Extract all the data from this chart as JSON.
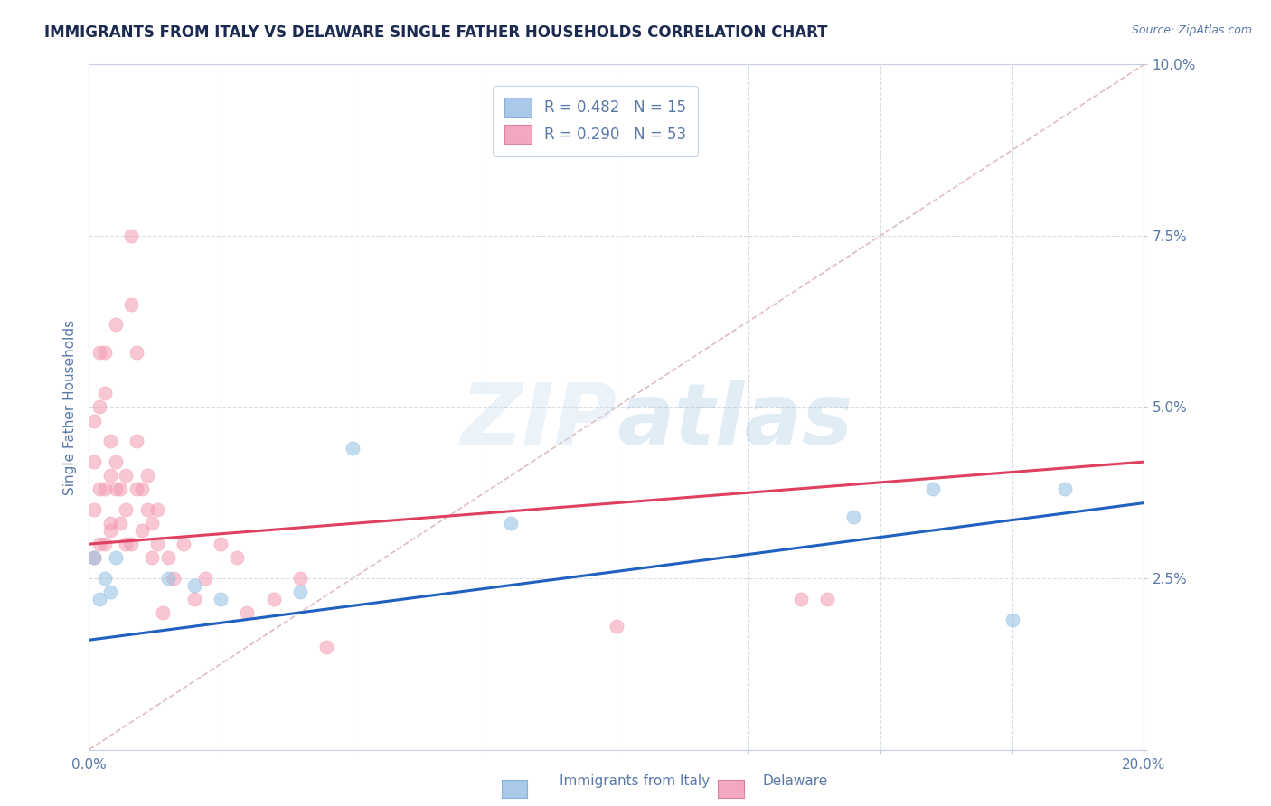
{
  "title": "IMMIGRANTS FROM ITALY VS DELAWARE SINGLE FATHER HOUSEHOLDS CORRELATION CHART",
  "source": "Source: ZipAtlas.com",
  "ylabel": "Single Father Households",
  "xlim": [
    0.0,
    0.2
  ],
  "ylim": [
    0.0,
    0.1
  ],
  "yticks": [
    0.0,
    0.025,
    0.05,
    0.075,
    0.1
  ],
  "ytick_labels": [
    "",
    "2.5%",
    "5.0%",
    "7.5%",
    "10.0%"
  ],
  "xticks": [
    0.0,
    0.025,
    0.05,
    0.075,
    0.1,
    0.125,
    0.15,
    0.175,
    0.2
  ],
  "legend1_label": "R = 0.482   N = 15",
  "legend2_label": "R = 0.290   N = 53",
  "legend1_color": "#aac8e8",
  "legend2_color": "#f4a8c0",
  "watermark": "ZIPatlas",
  "blue_scatter": [
    [
      0.001,
      0.028
    ],
    [
      0.002,
      0.022
    ],
    [
      0.003,
      0.025
    ],
    [
      0.004,
      0.023
    ],
    [
      0.005,
      0.028
    ],
    [
      0.015,
      0.025
    ],
    [
      0.02,
      0.024
    ],
    [
      0.025,
      0.022
    ],
    [
      0.04,
      0.023
    ],
    [
      0.05,
      0.044
    ],
    [
      0.08,
      0.033
    ],
    [
      0.145,
      0.034
    ],
    [
      0.16,
      0.038
    ],
    [
      0.175,
      0.019
    ],
    [
      0.185,
      0.038
    ]
  ],
  "pink_scatter": [
    [
      0.001,
      0.035
    ],
    [
      0.001,
      0.042
    ],
    [
      0.001,
      0.048
    ],
    [
      0.001,
      0.028
    ],
    [
      0.002,
      0.03
    ],
    [
      0.002,
      0.038
    ],
    [
      0.002,
      0.05
    ],
    [
      0.002,
      0.058
    ],
    [
      0.003,
      0.03
    ],
    [
      0.003,
      0.038
    ],
    [
      0.003,
      0.052
    ],
    [
      0.003,
      0.058
    ],
    [
      0.004,
      0.032
    ],
    [
      0.004,
      0.04
    ],
    [
      0.004,
      0.045
    ],
    [
      0.004,
      0.033
    ],
    [
      0.005,
      0.038
    ],
    [
      0.005,
      0.042
    ],
    [
      0.005,
      0.062
    ],
    [
      0.006,
      0.033
    ],
    [
      0.006,
      0.038
    ],
    [
      0.007,
      0.03
    ],
    [
      0.007,
      0.035
    ],
    [
      0.007,
      0.04
    ],
    [
      0.008,
      0.03
    ],
    [
      0.008,
      0.065
    ],
    [
      0.008,
      0.075
    ],
    [
      0.009,
      0.038
    ],
    [
      0.009,
      0.045
    ],
    [
      0.009,
      0.058
    ],
    [
      0.01,
      0.032
    ],
    [
      0.01,
      0.038
    ],
    [
      0.011,
      0.035
    ],
    [
      0.011,
      0.04
    ],
    [
      0.012,
      0.028
    ],
    [
      0.012,
      0.033
    ],
    [
      0.013,
      0.03
    ],
    [
      0.013,
      0.035
    ],
    [
      0.014,
      0.02
    ],
    [
      0.015,
      0.028
    ],
    [
      0.016,
      0.025
    ],
    [
      0.018,
      0.03
    ],
    [
      0.02,
      0.022
    ],
    [
      0.022,
      0.025
    ],
    [
      0.025,
      0.03
    ],
    [
      0.028,
      0.028
    ],
    [
      0.03,
      0.02
    ],
    [
      0.035,
      0.022
    ],
    [
      0.04,
      0.025
    ],
    [
      0.045,
      0.015
    ],
    [
      0.1,
      0.018
    ],
    [
      0.135,
      0.022
    ],
    [
      0.14,
      0.022
    ]
  ],
  "blue_line_x": [
    0.0,
    0.2
  ],
  "blue_line_y": [
    0.016,
    0.036
  ],
  "pink_line_x": [
    0.0,
    0.2
  ],
  "pink_line_y": [
    0.03,
    0.042
  ],
  "dashed_line_x": [
    0.0,
    0.2
  ],
  "dashed_line_y": [
    0.0,
    0.1
  ],
  "blue_color": "#92bfe0",
  "pink_color": "#f49ab0",
  "blue_line_color": "#2060c0",
  "pink_line_color": "#e04060",
  "dashed_color": "#d0a0a8",
  "background_color": "#ffffff",
  "grid_color": "#d8dde8",
  "axis_color": "#5878a8",
  "title_color": "#1a2a50",
  "scatter_size": 120,
  "scatter_alpha": 0.55
}
